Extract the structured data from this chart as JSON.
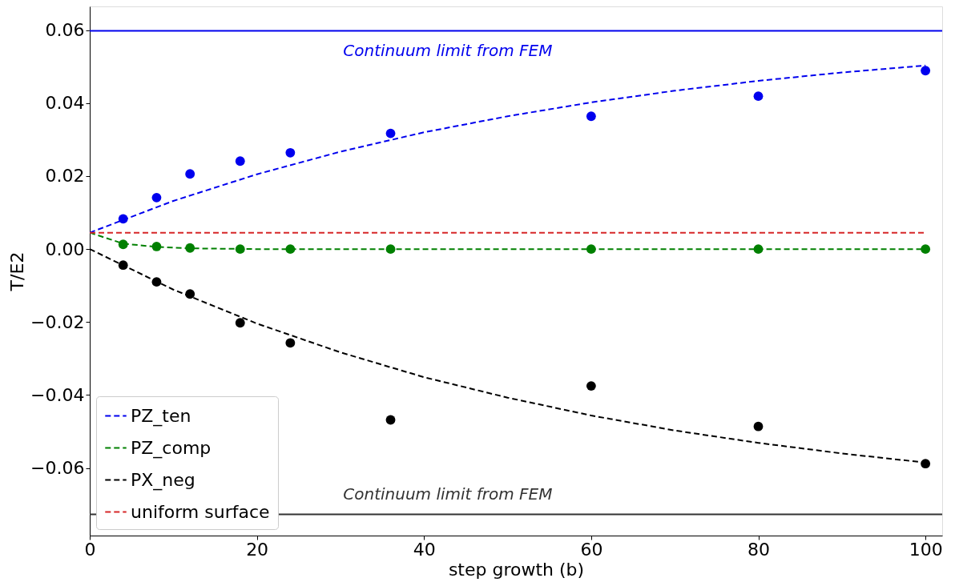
{
  "chart_data": {
    "type": "scatter",
    "xlabel": "step growth (b)",
    "ylabel": "T/E2",
    "xlim": [
      0,
      102
    ],
    "ylim": [
      -0.0785,
      0.0665
    ],
    "xticks": [
      0,
      20,
      40,
      60,
      80,
      100
    ],
    "yticks": [
      {
        "value": -0.06,
        "label": "−0.06"
      },
      {
        "value": -0.04,
        "label": "−0.04"
      },
      {
        "value": -0.02,
        "label": "−0.02"
      },
      {
        "value": 0,
        "label": "0.00"
      },
      {
        "value": 0.02,
        "label": "0.02"
      },
      {
        "value": 0.04,
        "label": "0.04"
      },
      {
        "value": 0.06,
        "label": "0.06"
      }
    ],
    "grid": false,
    "legend": "bottom left",
    "marker": "circle",
    "series": [
      {
        "color": "#0000ee",
        "x": [
          4,
          8,
          12,
          18,
          24,
          36,
          60,
          80,
          100
        ],
        "values": [
          0.0083,
          0.0141,
          0.0206,
          0.0241,
          0.0264,
          0.0317,
          0.0364,
          0.0419,
          0.0489
        ]
      },
      {
        "color": "#008000",
        "x": [
          4,
          8,
          12,
          18,
          24,
          36,
          60,
          80,
          100
        ],
        "values": [
          0.0013,
          0.0007,
          0.0003,
          0.0,
          0.0,
          0.0,
          0.0,
          0.0,
          0.0
        ]
      },
      {
        "color": "#000000",
        "x": [
          4,
          8,
          12,
          18,
          24,
          36,
          60,
          80,
          100
        ],
        "values": [
          -0.0044,
          -0.009,
          -0.0123,
          -0.0202,
          -0.0257,
          -0.0468,
          -0.0375,
          -0.0486,
          -0.0588
        ]
      },
      {
        "type": "line",
        "name": "PZ_ten",
        "color": "#0000ee",
        "line_style": "dashed",
        "marker": "none",
        "x": [
          0,
          10,
          20,
          30,
          40,
          50,
          60,
          70,
          80,
          90,
          100
        ],
        "values": [
          0.0045,
          0.0132,
          0.0205,
          0.0267,
          0.032,
          0.0364,
          0.0402,
          0.0434,
          0.0461,
          0.0484,
          0.0503
        ]
      },
      {
        "type": "line",
        "name": "PZ_comp",
        "color": "#008000",
        "line_style": "dashed",
        "marker": "none",
        "x": [
          0,
          4,
          8,
          12,
          20,
          100
        ],
        "values": [
          0.0045,
          0.0015,
          0.0006,
          0.0002,
          0.0,
          0.0
        ]
      },
      {
        "type": "line",
        "name": "PX_neg",
        "color": "#000000",
        "line_style": "dashed",
        "marker": "none",
        "x": [
          0,
          10,
          20,
          30,
          40,
          50,
          60,
          70,
          80,
          90,
          100
        ],
        "values": [
          0.0,
          -0.0111,
          -0.0204,
          -0.0283,
          -0.0351,
          -0.0407,
          -0.0456,
          -0.0497,
          -0.0531,
          -0.056,
          -0.0585
        ]
      },
      {
        "type": "line",
        "name": "uniform surface",
        "color": "#d62728",
        "line_style": "dashed",
        "marker": "none",
        "x": [
          0,
          100
        ],
        "values": [
          0.0045,
          0.0045
        ]
      }
    ],
    "ref_lines": [
      {
        "axis": "y",
        "value": 0.0598,
        "label": "Continuum limit from FEM",
        "color": "#0000ee",
        "line_style": "solid"
      },
      {
        "axis": "y",
        "value": -0.0727,
        "label": "Continuum limit from FEM",
        "color": "#333333",
        "line_style": "solid"
      }
    ]
  }
}
